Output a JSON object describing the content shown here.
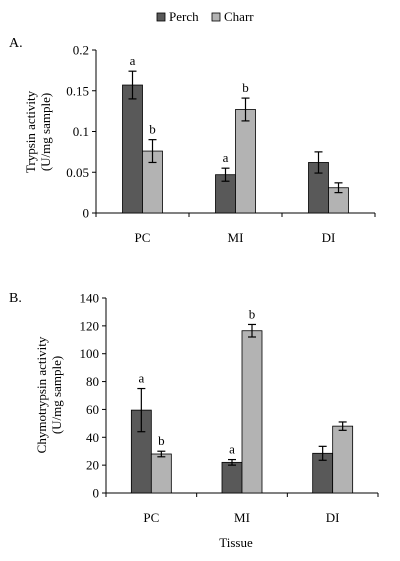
{
  "legend": {
    "position": "top",
    "entries": [
      {
        "name": "Perch",
        "color": "#595959"
      },
      {
        "name": "Charr",
        "color": "#b3b3b3"
      }
    ]
  },
  "chart_data": [
    {
      "panel_label": "A.",
      "type": "bar",
      "categories": [
        "PC",
        "MI",
        "DI"
      ],
      "series": [
        {
          "name": "Perch",
          "values": [
            0.157,
            0.047,
            0.062
          ],
          "errors": [
            0.017,
            0.008,
            0.013
          ],
          "sig": [
            "a",
            "a",
            ""
          ]
        },
        {
          "name": "Charr",
          "values": [
            0.076,
            0.127,
            0.031
          ],
          "errors": [
            0.014,
            0.014,
            0.006
          ],
          "sig": [
            "b",
            "b",
            ""
          ]
        }
      ],
      "xlabel": "",
      "ylabel": [
        "Trypsin activity",
        "(U/mg sample)"
      ],
      "ylim": [
        0,
        0.2
      ],
      "yticks": [
        0,
        0.05,
        0.1,
        0.15,
        0.2
      ],
      "ytick_labels": [
        "0",
        "0.05",
        "0.1",
        "0.15",
        "0.2"
      ],
      "grid": false
    },
    {
      "panel_label": "B.",
      "type": "bar",
      "categories": [
        "PC",
        "MI",
        "DI"
      ],
      "series": [
        {
          "name": "Perch",
          "values": [
            59.5,
            22,
            28.5
          ],
          "errors": [
            15.5,
            2,
            5
          ],
          "sig": [
            "a",
            "a",
            ""
          ]
        },
        {
          "name": "Charr",
          "values": [
            28,
            116.5,
            48
          ],
          "errors": [
            2,
            4.5,
            3
          ],
          "sig": [
            "b",
            "b",
            ""
          ]
        }
      ],
      "xlabel": "Tissue",
      "ylabel": [
        "Chymotrypsin activity",
        "(U/mg sample)"
      ],
      "ylim": [
        0,
        140
      ],
      "yticks": [
        0,
        20,
        40,
        60,
        80,
        100,
        120,
        140
      ],
      "ytick_labels": [
        "0",
        "20",
        "40",
        "60",
        "80",
        "100",
        "120",
        "140"
      ],
      "grid": false
    }
  ]
}
